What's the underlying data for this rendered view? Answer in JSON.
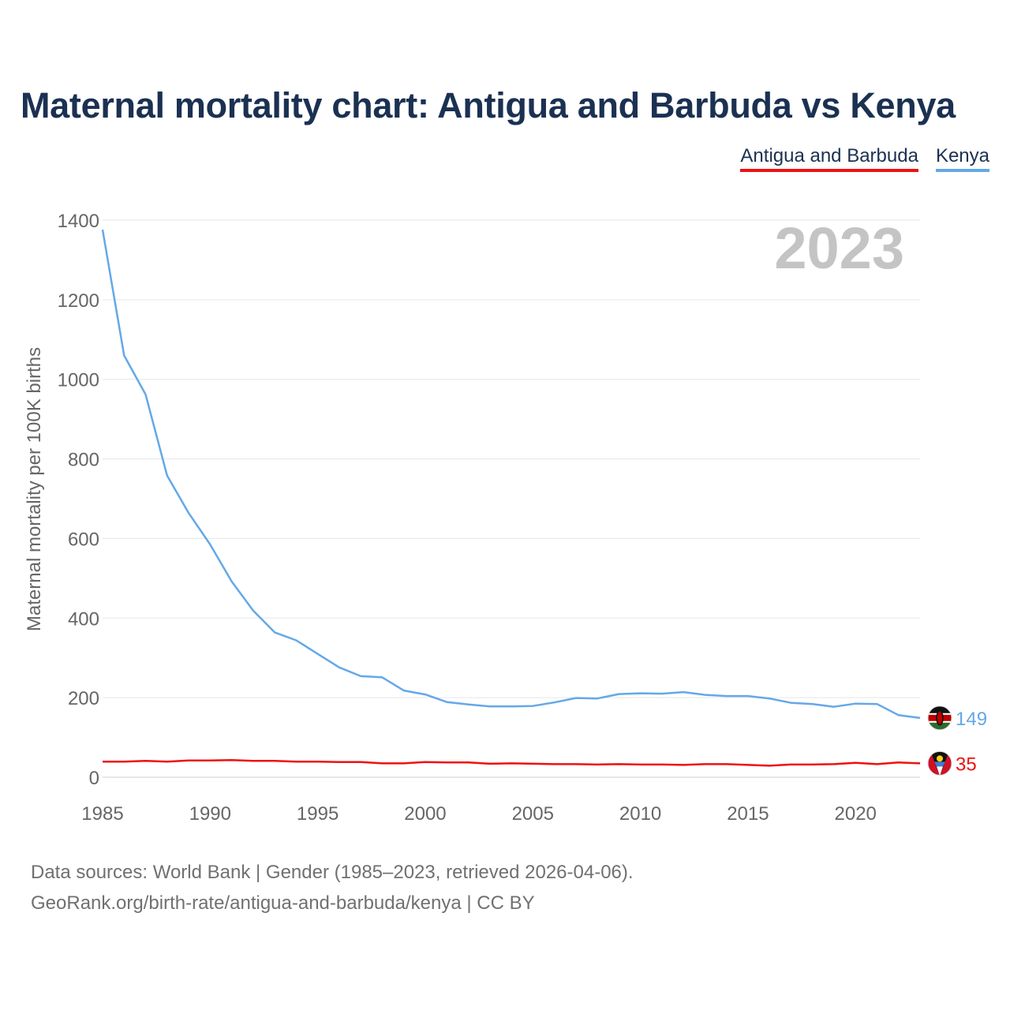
{
  "title": "Maternal mortality chart: Antigua and Barbuda vs Kenya",
  "legend": [
    {
      "name": "Antigua and Barbuda",
      "color": "#ee1111"
    },
    {
      "name": "Kenya",
      "color": "#64a8e8"
    }
  ],
  "chart_data": {
    "type": "line",
    "title": "Maternal mortality chart: Antigua and Barbuda vs Kenya",
    "xlabel": "",
    "ylabel": "Maternal mortality per 100K births",
    "year_label": "2023",
    "xlim": [
      1985,
      2023
    ],
    "ylim": [
      0,
      1400
    ],
    "xticks": [
      1985,
      1990,
      1995,
      2000,
      2005,
      2010,
      2015,
      2020
    ],
    "yticks": [
      0,
      200,
      400,
      600,
      800,
      1000,
      1200,
      1400
    ],
    "grid": true,
    "x": [
      1985,
      1986,
      1987,
      1988,
      1989,
      1990,
      1991,
      1992,
      1993,
      1994,
      1995,
      1996,
      1997,
      1998,
      1999,
      2000,
      2001,
      2002,
      2003,
      2004,
      2005,
      2006,
      2007,
      2008,
      2009,
      2010,
      2011,
      2012,
      2013,
      2014,
      2015,
      2016,
      2017,
      2018,
      2019,
      2020,
      2021,
      2022,
      2023
    ],
    "series": [
      {
        "name": "Kenya",
        "color": "#64a8e8",
        "end_label": "149",
        "values": [
          1376,
          1060,
          962,
          758,
          664,
          585,
          492,
          419,
          364,
          344,
          310,
          276,
          254,
          251,
          218,
          208,
          189,
          183,
          178,
          178,
          179,
          188,
          199,
          198,
          209,
          211,
          210,
          214,
          207,
          204,
          204,
          198,
          187,
          184,
          177,
          185,
          184,
          156,
          149
        ]
      },
      {
        "name": "Antigua and Barbuda",
        "color": "#ee1111",
        "end_label": "35",
        "values": [
          39,
          39,
          41,
          39,
          42,
          42,
          43,
          41,
          41,
          39,
          39,
          38,
          38,
          35,
          35,
          38,
          37,
          37,
          34,
          35,
          34,
          33,
          33,
          32,
          33,
          32,
          32,
          31,
          33,
          33,
          31,
          29,
          32,
          32,
          33,
          36,
          33,
          37,
          35
        ]
      }
    ]
  },
  "footer": {
    "line1": "Data sources: World Bank | Gender (1985–2023, retrieved 2026-04-06).",
    "line2": "GeoRank.org/birth-rate/antigua-and-barbuda/kenya | CC BY"
  }
}
